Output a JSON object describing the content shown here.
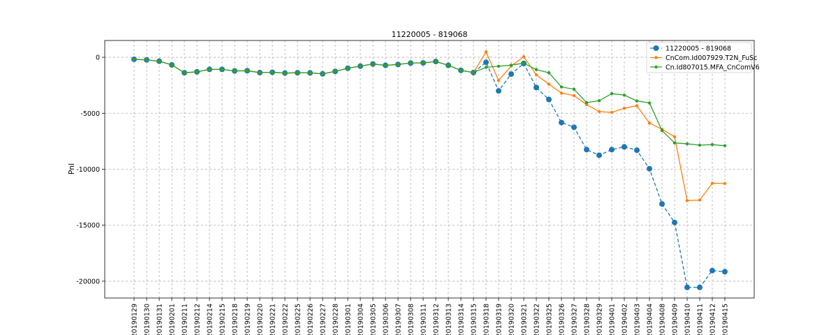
{
  "chart_data": {
    "type": "line",
    "title": "11220005 - 819068",
    "xlabel": "",
    "ylabel": "Pnl",
    "ylim": [
      -21500,
      1500
    ],
    "yticks": [
      0,
      -5000,
      -10000,
      -15000,
      -20000
    ],
    "grid": true,
    "legend_position": "top-right",
    "categories": [
      "20190129",
      "20190130",
      "20190131",
      "20190201",
      "20190211",
      "20190212",
      "20190214",
      "20190215",
      "20190218",
      "20190219",
      "20190220",
      "20190221",
      "20190222",
      "20190225",
      "20190226",
      "20190227",
      "20190228",
      "20190301",
      "20190304",
      "20190305",
      "20190306",
      "20190307",
      "20190308",
      "20190311",
      "20190312",
      "20190313",
      "20190314",
      "20190315",
      "20190318",
      "20190319",
      "20190320",
      "20190321",
      "20190322",
      "20190325",
      "20190326",
      "20190327",
      "20190328",
      "20190329",
      "20190401",
      "20190402",
      "20190403",
      "20190404",
      "20190408",
      "20190409",
      "20190410",
      "20190411",
      "20190412",
      "20190415"
    ],
    "series": [
      {
        "name": "11220005 - 819068",
        "color": "#1f77b4",
        "style": "dashed",
        "marker": "large-circle",
        "values": [
          -180,
          -230,
          -350,
          -680,
          -1380,
          -1300,
          -1080,
          -1080,
          -1220,
          -1200,
          -1370,
          -1340,
          -1410,
          -1380,
          -1390,
          -1480,
          -1260,
          -980,
          -790,
          -600,
          -720,
          -640,
          -520,
          -500,
          -380,
          -720,
          -1170,
          -1360,
          -450,
          -3000,
          -1500,
          -550,
          -2700,
          -3770,
          -5830,
          -6250,
          -8250,
          -8750,
          -8250,
          -8000,
          -8300,
          -9950,
          -13100,
          -14750,
          -20550,
          -20550,
          -19050,
          -19150
        ]
      },
      {
        "name": "CnCom.Id007929.T2N_FuSc",
        "color": "#ff7f0e",
        "style": "solid",
        "marker": "small-circle",
        "values": [
          -180,
          -230,
          -350,
          -680,
          -1380,
          -1300,
          -1080,
          -1080,
          -1220,
          -1200,
          -1370,
          -1340,
          -1410,
          -1380,
          -1390,
          -1480,
          -1260,
          -980,
          -790,
          -600,
          -720,
          -640,
          -520,
          -500,
          -380,
          -720,
          -1170,
          -1360,
          480,
          -2070,
          -780,
          50,
          -1570,
          -2400,
          -3200,
          -3420,
          -4220,
          -4850,
          -4920,
          -4550,
          -4330,
          -5880,
          -6430,
          -7100,
          -12800,
          -12750,
          -11250,
          -11270
        ]
      },
      {
        "name": "Cn.Id807015.MFA_CnComV6",
        "color": "#2ca02c",
        "style": "solid",
        "marker": "small-circle",
        "values": [
          -180,
          -230,
          -350,
          -680,
          -1380,
          -1300,
          -1080,
          -1080,
          -1220,
          -1200,
          -1370,
          -1340,
          -1410,
          -1380,
          -1390,
          -1480,
          -1260,
          -980,
          -790,
          -600,
          -720,
          -640,
          -520,
          -500,
          -380,
          -720,
          -1170,
          -1360,
          -900,
          -800,
          -700,
          -530,
          -1100,
          -1380,
          -2650,
          -2850,
          -4050,
          -3880,
          -3250,
          -3380,
          -3900,
          -4080,
          -6550,
          -7650,
          -7730,
          -7850,
          -7800,
          -7900
        ]
      }
    ]
  }
}
